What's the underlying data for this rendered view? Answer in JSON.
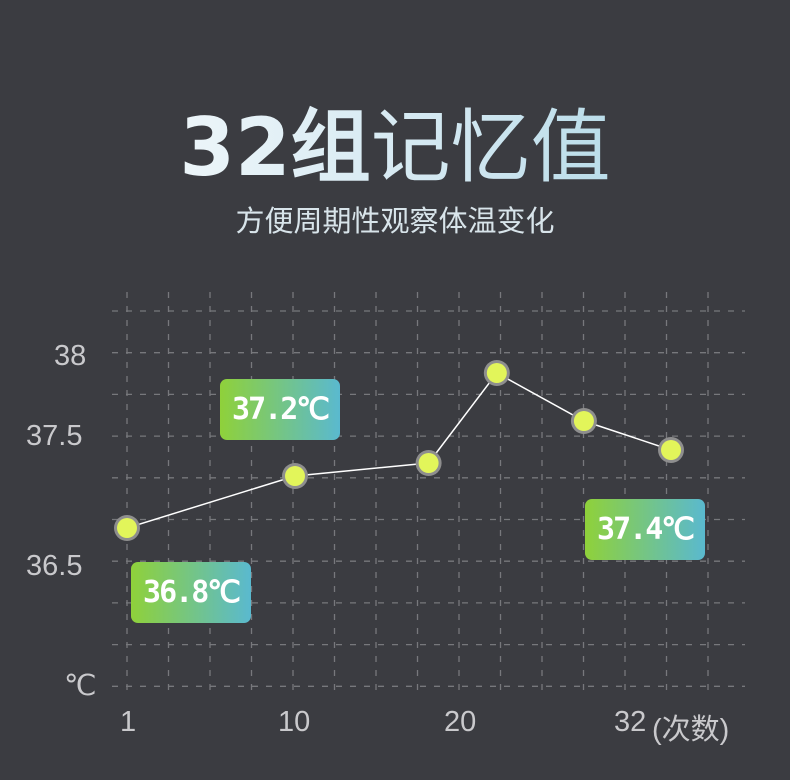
{
  "header": {
    "title_bold": "32组",
    "title_light": "记忆值",
    "subtitle": "方便周期性观察体温变化"
  },
  "chart_data": {
    "type": "line",
    "x": [
      1,
      10,
      18,
      22,
      27,
      32
    ],
    "values": [
      36.8,
      37.2,
      37.3,
      37.9,
      37.6,
      37.4
    ],
    "xlabel": "(次数)",
    "ylabel": "℃",
    "x_ticks": [
      "1",
      "10",
      "20",
      "32"
    ],
    "y_ticks": [
      "38",
      "37.5",
      "36.5"
    ],
    "grid": true,
    "annotations": [
      "36.8℃",
      "37.2℃",
      "37.4℃"
    ],
    "colors": {
      "line": "#ffffff",
      "point": "#e2f55a",
      "point_ring": "#8e8e8e",
      "grid": "#77787c",
      "badge_start": "#8fd13a",
      "badge_end": "#5ab9cf"
    }
  }
}
